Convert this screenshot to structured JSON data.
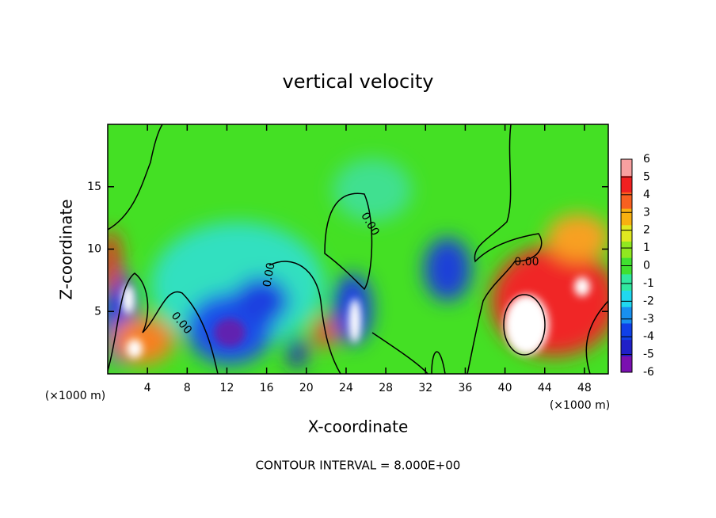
{
  "chart_data": {
    "type": "contour",
    "title": "vertical velocity",
    "xlabel": "X-coordinate",
    "ylabel": "Z-coordinate",
    "unit_label": "(×1000 m)",
    "footer": "CONTOUR INTERVAL = 8.000E+00",
    "contour_labels": [
      "0.00",
      "0.00",
      "0.00",
      "0.00"
    ],
    "xlim": [
      0,
      50.4
    ],
    "xticks": [
      4,
      8,
      12,
      16,
      20,
      24,
      28,
      32,
      36,
      40,
      44,
      48
    ],
    "ylim": [
      0,
      20
    ],
    "yticks": [
      5,
      10,
      15
    ],
    "clim": [
      -6,
      6
    ],
    "cticks": [
      -6,
      -5,
      -4,
      -3,
      -2,
      -1,
      0,
      1,
      2,
      3,
      4,
      5,
      6
    ],
    "colors": [
      "#7a10b0",
      "#2020c8",
      "#1040e8",
      "#1890f0",
      "#20d8f0",
      "#30e8a0",
      "#40e030",
      "#90e820",
      "#e0e820",
      "#f8b010",
      "#f86020",
      "#f02020",
      "#f8a0a0"
    ]
  }
}
